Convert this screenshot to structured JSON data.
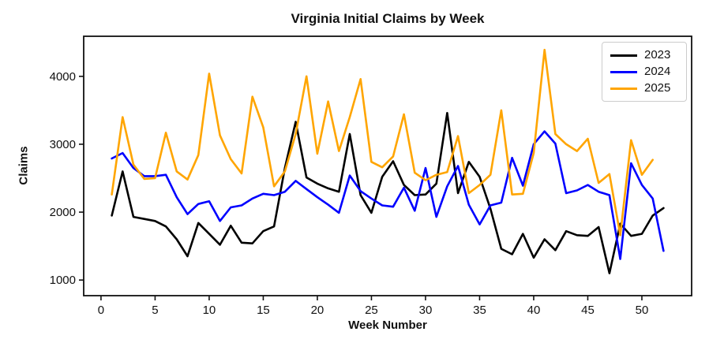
{
  "chart_data": {
    "type": "line",
    "title": "Virginia Initial Claims by Week",
    "xlabel": "Week Number",
    "ylabel": "Claims",
    "x_start_week": 1,
    "xlim": [
      -1.6,
      54.6
    ],
    "ylim": [
      770,
      4590
    ],
    "xticks": [
      0,
      5,
      10,
      15,
      20,
      25,
      30,
      35,
      40,
      45,
      50
    ],
    "yticks": [
      1000,
      2000,
      3000,
      4000
    ],
    "grid": false,
    "legend_position": "upper right",
    "series": [
      {
        "name": "2023",
        "color": "#000000",
        "values": [
          1950,
          2600,
          1930,
          1900,
          1870,
          1790,
          1600,
          1350,
          1840,
          1680,
          1520,
          1800,
          1550,
          1540,
          1720,
          1790,
          2650,
          3330,
          2510,
          2420,
          2350,
          2300,
          3150,
          2250,
          1990,
          2520,
          2750,
          2400,
          2250,
          2260,
          2420,
          3460,
          2280,
          2740,
          2520,
          2050,
          1460,
          1380,
          1680,
          1330,
          1600,
          1440,
          1720,
          1660,
          1650,
          1780,
          1100,
          1830,
          1650,
          1680,
          1950,
          2060
        ]
      },
      {
        "name": "2024",
        "color": "#0000ff",
        "values": [
          2790,
          2870,
          2650,
          2530,
          2530,
          2550,
          2220,
          1970,
          2120,
          2160,
          1870,
          2070,
          2100,
          2200,
          2270,
          2250,
          2300,
          2460,
          2340,
          2220,
          2110,
          1990,
          2540,
          2310,
          2200,
          2100,
          2080,
          2360,
          2020,
          2650,
          1930,
          2380,
          2680,
          2110,
          1820,
          2100,
          2140,
          2800,
          2390,
          3000,
          3190,
          3010,
          2280,
          2320,
          2400,
          2300,
          2250,
          1310,
          2720,
          2400,
          2200,
          1430
        ]
      },
      {
        "name": "2025",
        "color": "#ffa500",
        "values": [
          2260,
          3400,
          2700,
          2490,
          2500,
          3170,
          2600,
          2480,
          2840,
          4040,
          3130,
          2780,
          2570,
          3700,
          3250,
          2380,
          2600,
          3150,
          4000,
          2860,
          3630,
          2900,
          3400,
          3960,
          2740,
          2660,
          2820,
          3440,
          2580,
          2470,
          2550,
          2590,
          3120,
          2280,
          2400,
          2550,
          3500,
          2260,
          2270,
          2870,
          4390,
          3150,
          3000,
          2900,
          3080,
          2430,
          2560,
          1660,
          3060,
          2550,
          2770
        ]
      }
    ]
  }
}
